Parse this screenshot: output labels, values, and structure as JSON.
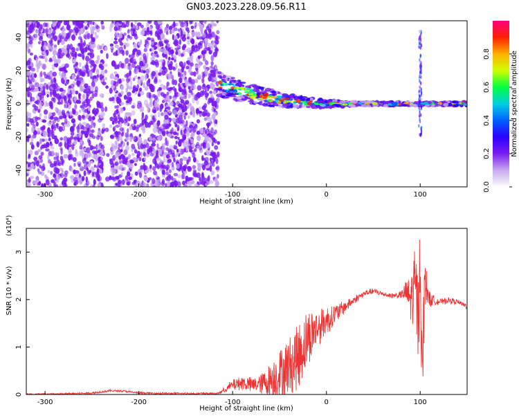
{
  "title": "GN03.2023.228.09.56.R11",
  "chart_data": [
    {
      "type": "heatmap",
      "xlabel": "Height of straight line (km)",
      "ylabel": "Frequency (Hz)",
      "xlim": [
        -320,
        150
      ],
      "ylim": [
        -50,
        50
      ],
      "x_ticks": [
        -300,
        -200,
        -100,
        0,
        100
      ],
      "y_ticks": [
        -40,
        -20,
        0,
        20,
        40
      ],
      "colorbar": {
        "label": "Normalized spectral amplitude",
        "range": [
          0.0,
          1.0
        ],
        "ticks": [
          "0.0",
          "0.2",
          "0.4",
          "0.6",
          "0.8"
        ],
        "colors": [
          "#ffffff",
          "#c8a8f0",
          "#7a1cf0",
          "#2a00ff",
          "#0060ff",
          "#00d0e0",
          "#00ff40",
          "#d0ff00",
          "#ffb000",
          "#ff2000",
          "#ff0080"
        ]
      },
      "regions": [
        {
          "name": "noise",
          "x_range": [
            -320,
            -115
          ],
          "freq_range": [
            -50,
            50
          ],
          "amplitude": 0.15
        },
        {
          "name": "noise-gap",
          "x_range": [
            -238,
            -230
          ],
          "freq_range": [
            -50,
            50
          ],
          "amplitude": 0.02
        },
        {
          "name": "signal-band",
          "x_range": [
            -115,
            150
          ],
          "freq_center_start": 12,
          "freq_center_end": 0,
          "amplitude": 0.5
        },
        {
          "name": "peak",
          "x": 100,
          "freq_range": [
            -20,
            45
          ],
          "amplitude": 0.3
        }
      ]
    },
    {
      "type": "line",
      "xlabel": "Height of straight line (km)",
      "ylabel": "SNR (10 * v/v)",
      "y_multiplier": "(x10⁴)",
      "xlim": [
        -320,
        150
      ],
      "ylim": [
        0,
        3.5
      ],
      "x_ticks": [
        -300,
        -200,
        -100,
        0,
        100
      ],
      "y_ticks": [
        0,
        1,
        2,
        3
      ],
      "series_color": "#ee3333",
      "x": [
        -320,
        -280,
        -250,
        -230,
        -215,
        -200,
        -170,
        -140,
        -115,
        -100,
        -90,
        -80,
        -70,
        -60,
        -50,
        -40,
        -30,
        -20,
        -10,
        0,
        10,
        20,
        30,
        40,
        50,
        60,
        70,
        80,
        85,
        90,
        95,
        98,
        100,
        102,
        105,
        110,
        120,
        130,
        140,
        150
      ],
      "y": [
        0.0,
        0.01,
        0.03,
        0.08,
        0.07,
        0.03,
        0.02,
        0.02,
        0.02,
        0.2,
        0.25,
        0.2,
        0.22,
        0.3,
        0.45,
        0.6,
        0.8,
        1.2,
        1.4,
        1.55,
        1.7,
        1.85,
        2.0,
        2.12,
        2.18,
        2.12,
        2.08,
        2.1,
        2.15,
        2.0,
        2.3,
        1.5,
        3.1,
        0.4,
        2.4,
        2.0,
        1.95,
        1.98,
        1.95,
        1.85
      ],
      "volatility": [
        0,
        0,
        0,
        0,
        0,
        0,
        0,
        0,
        0,
        0.12,
        0.15,
        0.15,
        0.2,
        0.35,
        0.5,
        0.6,
        0.7,
        0.6,
        0.4,
        0.3,
        0.2,
        0.12,
        0.08,
        0.05,
        0.05,
        0.05,
        0.05,
        0.08,
        0.25,
        0.5,
        0.9,
        1.0,
        1.1,
        1.0,
        0.5,
        0.15,
        0.05,
        0.05,
        0.05,
        0.05
      ]
    }
  ]
}
